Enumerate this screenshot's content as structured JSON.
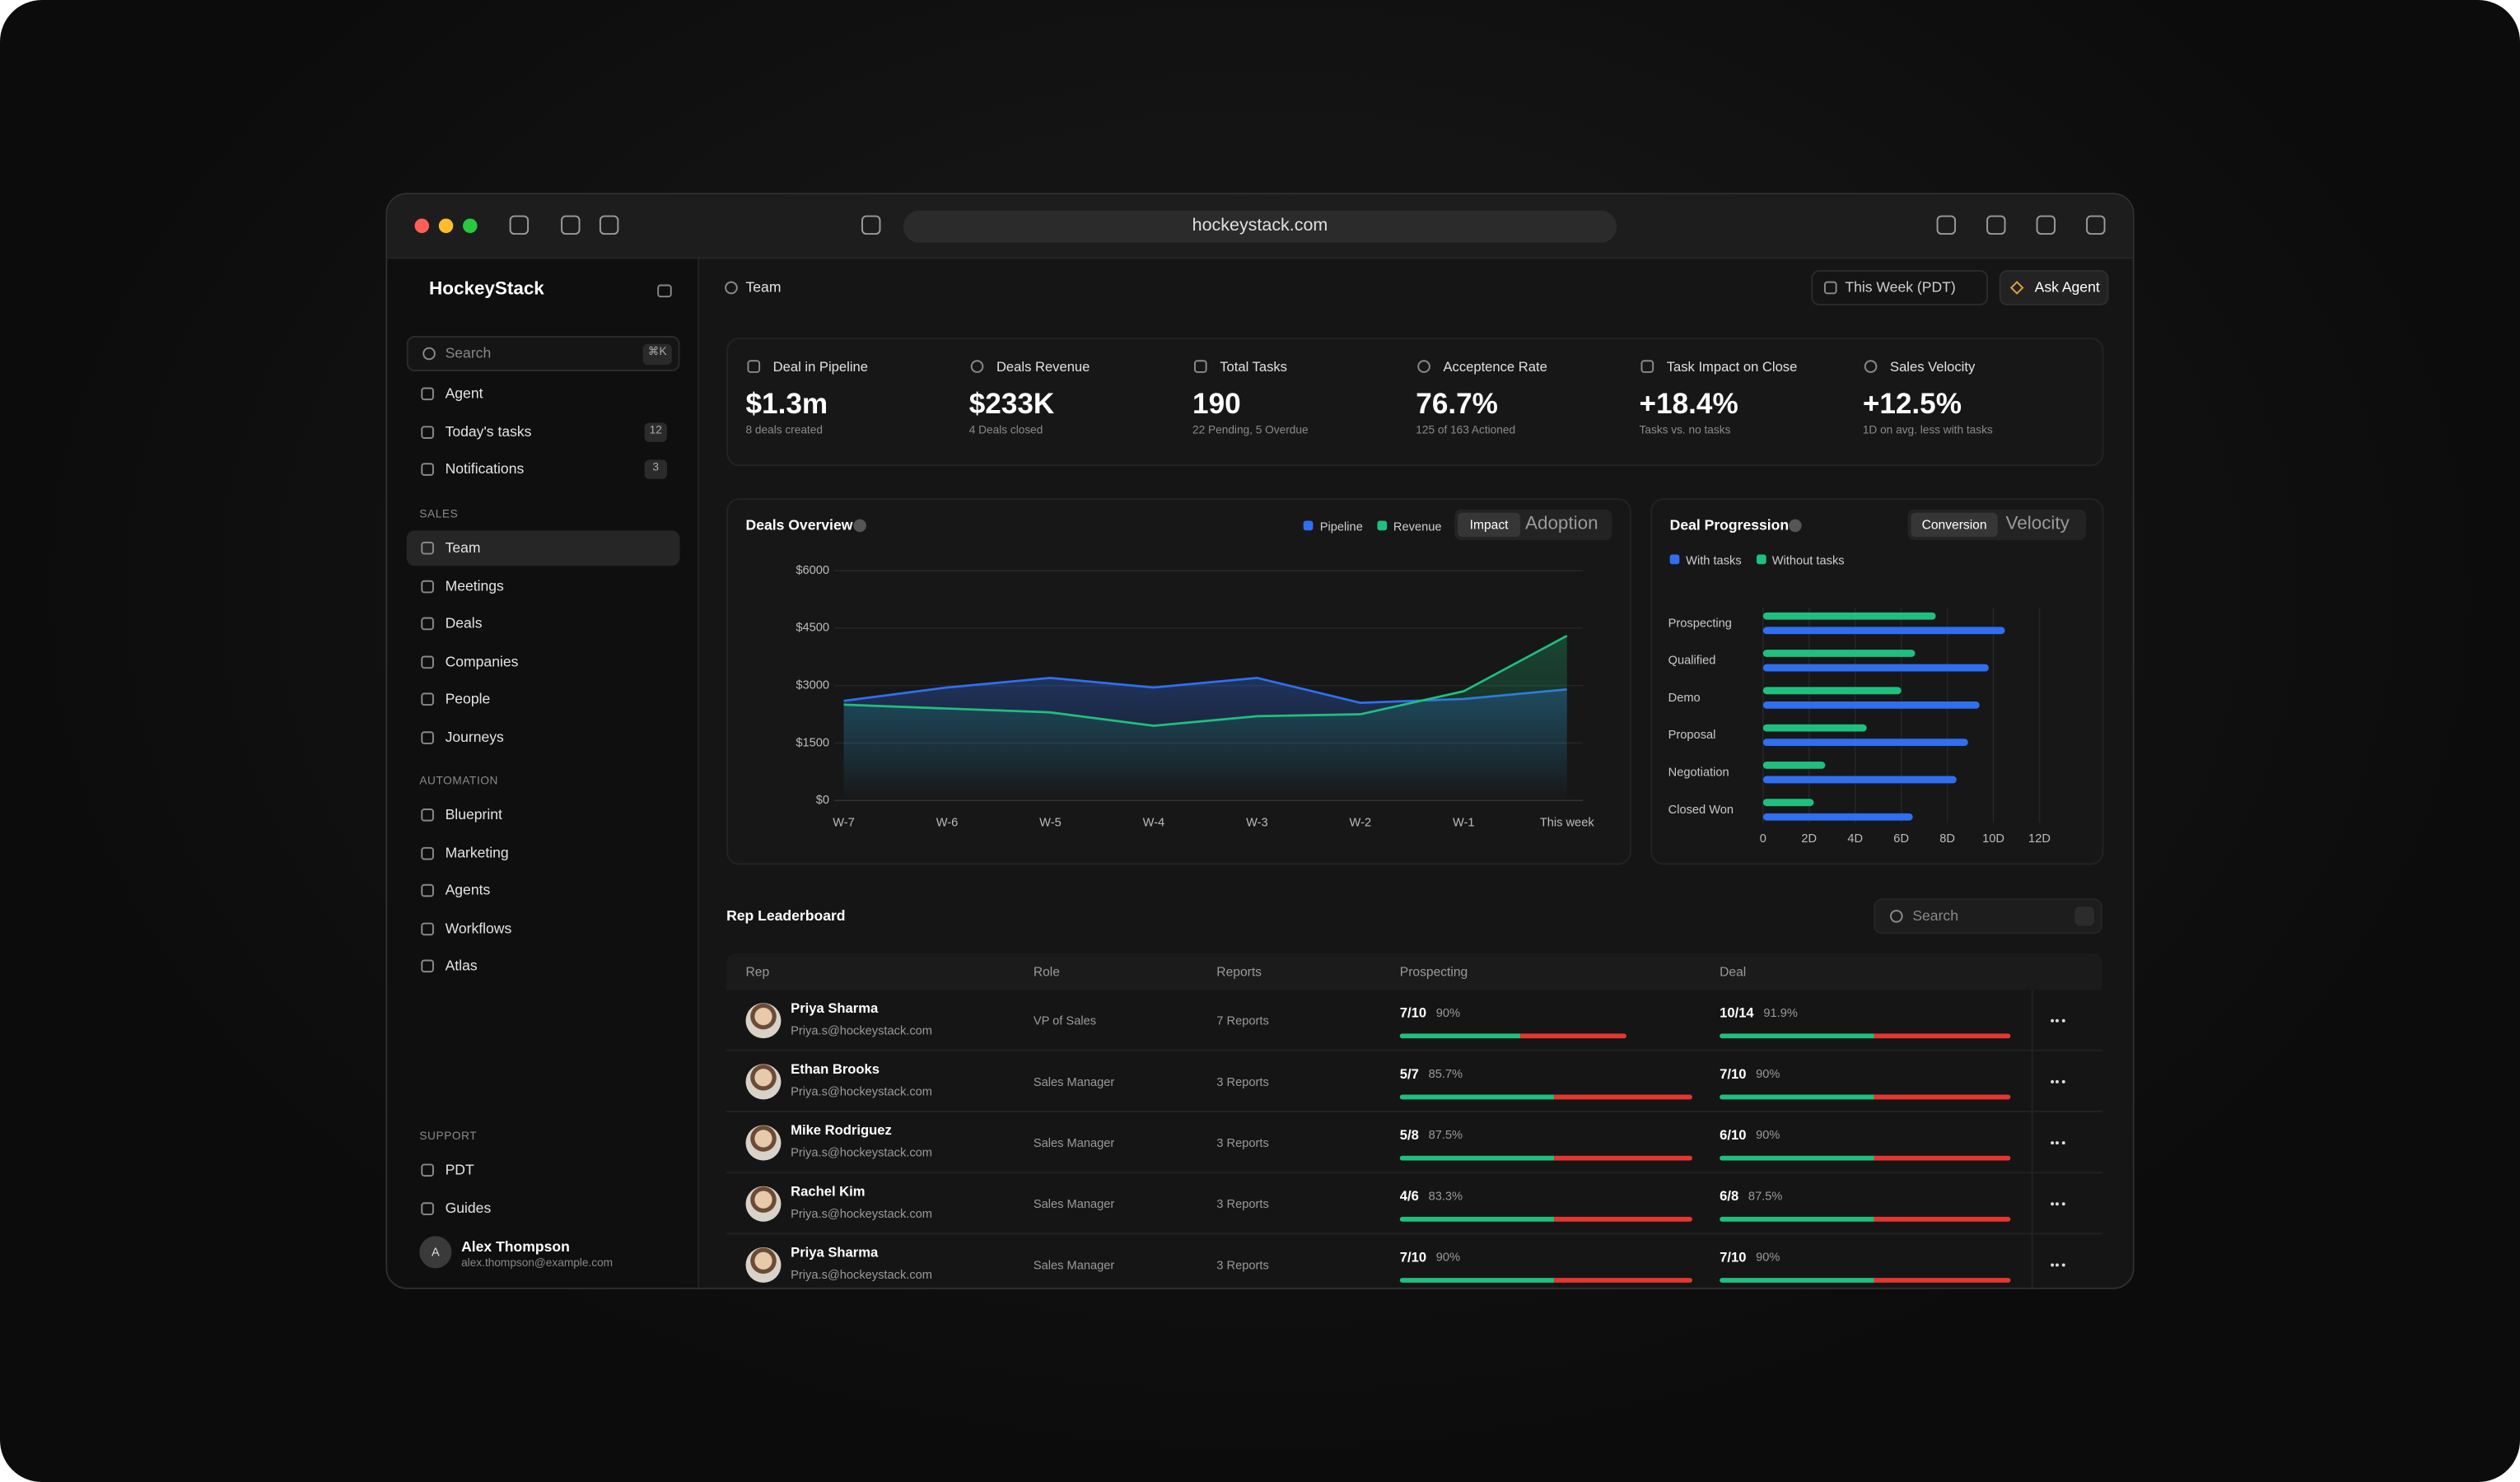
{
  "browser": {
    "url": "hockeystack.com"
  },
  "sidebar": {
    "brand": "HockeyStack",
    "search": "Search",
    "search_shortcut": "⌘K",
    "top_items": [
      {
        "label": "Agent"
      },
      {
        "label": "Today's tasks",
        "badge": 12
      },
      {
        "label": "Notifications",
        "badge": 3
      }
    ],
    "sections": [
      {
        "title": "SALES",
        "items": [
          "Team",
          "Meetings",
          "Deals",
          "Companies",
          "People",
          "Journeys"
        ]
      },
      {
        "title": "AUTOMATION",
        "items": [
          "Blueprint",
          "Marketing",
          "Agents",
          "Workflows",
          "Atlas"
        ]
      },
      {
        "title": "SUPPORT",
        "items": [
          "PDT",
          "Guides"
        ]
      }
    ],
    "user": {
      "initial": "A",
      "name": "Alex Thompson",
      "email": "alex.thompson@example.com"
    }
  },
  "header": {
    "breadcrumb": "Team",
    "date_range": "This Week (PDT)",
    "ask_button": "Ask Agent"
  },
  "kpis": [
    {
      "label": "Deal in Pipeline",
      "value": "$1.3m",
      "sub": "8 deals created"
    },
    {
      "label": "Deals Revenue",
      "value": "$233K",
      "sub": "4 Deals closed"
    },
    {
      "label": "Total Tasks",
      "value": "190",
      "sub": "22 Pending, 5 Overdue"
    },
    {
      "label": "Acceptence Rate",
      "value": "76.7%",
      "sub": "125 of 163 Actioned"
    },
    {
      "label": "Task Impact on Close",
      "value": "+18.4%",
      "sub": "Tasks vs. no tasks"
    },
    {
      "label": "Sales Velocity",
      "value": "+12.5%",
      "sub": "1D on avg. less with tasks"
    }
  ],
  "chart_data": [
    {
      "type": "line",
      "title": "Deals Overview",
      "toggle": [
        "Impact",
        "Adoption"
      ],
      "categories": [
        "W-7",
        "W-6",
        "W-5",
        "W-4",
        "W-3",
        "W-2",
        "W-1",
        "This week"
      ],
      "series": [
        {
          "name": "Pipeline",
          "color": "#2f6ff0",
          "values": [
            2600,
            2950,
            3200,
            2950,
            3200,
            2550,
            2650,
            2900
          ]
        },
        {
          "name": "Revenue",
          "color": "#1fbf7f",
          "values": [
            2500,
            2400,
            2300,
            1950,
            2200,
            2250,
            2850,
            4300
          ]
        }
      ],
      "ylim": [
        0,
        6000
      ],
      "yticks": [
        {
          "value": 0,
          "label": "$0"
        },
        {
          "value": 1500,
          "label": "$1500"
        },
        {
          "value": 3000,
          "label": "$3000"
        },
        {
          "value": 4500,
          "label": "$4500"
        },
        {
          "value": 6000,
          "label": "$6000"
        }
      ],
      "grid": true,
      "area": true
    },
    {
      "type": "hbar",
      "title": "Deal Progression",
      "toggle": [
        "Conversion",
        "Velocity"
      ],
      "categories": [
        "Prospecting",
        "Qualified",
        "Demo",
        "Proposal",
        "Negotiation",
        "Closed Won"
      ],
      "series": [
        {
          "name": "With tasks",
          "color": "#2f6ff0",
          "values": [
            10.5,
            9.8,
            9.4,
            8.9,
            8.4,
            6.5
          ]
        },
        {
          "name": "Without tasks",
          "color": "#1fbf7f",
          "values": [
            7.5,
            6.6,
            6.0,
            4.5,
            2.7,
            2.2
          ]
        }
      ],
      "xlim": [
        0,
        12
      ],
      "xticks": [
        0,
        {
          "value": 2,
          "label": "2D"
        },
        {
          "value": 4,
          "label": "4D"
        },
        {
          "value": 6,
          "label": "6D"
        },
        {
          "value": 8,
          "label": "8D"
        },
        {
          "value": 10,
          "label": "10D"
        },
        {
          "value": 12,
          "label": "12D"
        }
      ],
      "grid": true
    }
  ],
  "leaderboard": {
    "title": "Rep Leaderboard",
    "search": "Search",
    "columns": [
      "Rep",
      "Role",
      "Reports",
      "Prospecting",
      "Deal"
    ],
    "rows": [
      {
        "name": "Priya Sharma",
        "email": "Priya.s@hockeystack.com",
        "role": "VP of Sales",
        "reports": "7 Reports",
        "prospecting": "7/10",
        "prospecting_rate": "90%",
        "deal": "10/14",
        "deal_rate": "91.9%"
      },
      {
        "name": "Ethan Brooks",
        "email": "Priya.s@hockeystack.com",
        "role": "Sales Manager",
        "reports": "3 Reports",
        "prospecting": "5/7",
        "prospecting_rate": "85.7%",
        "deal": "7/10",
        "deal_rate": "90%"
      },
      {
        "name": "Mike Rodriguez",
        "email": "Priya.s@hockeystack.com",
        "role": "Sales Manager",
        "reports": "3 Reports",
        "prospecting": "5/8",
        "prospecting_rate": "87.5%",
        "deal": "6/10",
        "deal_rate": "90%"
      },
      {
        "name": "Rachel Kim",
        "email": "Priya.s@hockeystack.com",
        "role": "Sales Manager",
        "reports": "3 Reports",
        "prospecting": "4/6",
        "prospecting_rate": "83.3%",
        "deal": "6/8",
        "deal_rate": "87.5%"
      },
      {
        "name": "Priya Sharma",
        "email": "Priya.s@hockeystack.com",
        "role": "Sales Manager",
        "reports": "3 Reports",
        "prospecting": "7/10",
        "prospecting_rate": "90%",
        "deal": "7/10",
        "deal_rate": "90%"
      }
    ]
  }
}
